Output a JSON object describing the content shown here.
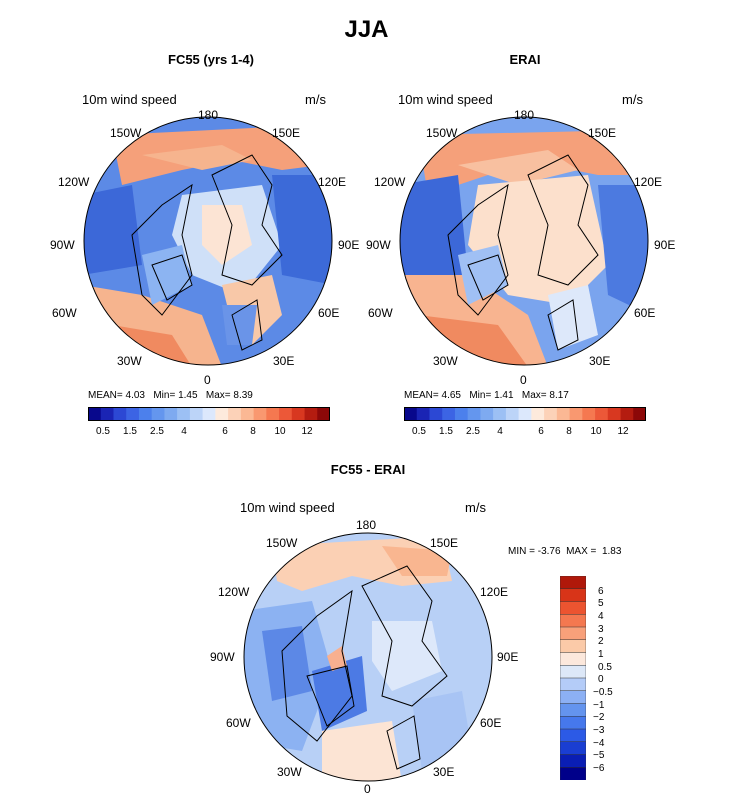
{
  "title": "JJA",
  "panels": [
    {
      "id": "fc55",
      "title": "FC55 (yrs 1-4)",
      "variable": "10m wind speed",
      "units": "m/s",
      "stats": {
        "mean_label": "MEAN=",
        "mean": "4.03",
        "min_label": "Min=",
        "min": "1.45",
        "max_label": "Max=",
        "max": "8.39"
      }
    },
    {
      "id": "erai",
      "title": "ERAI",
      "variable": "10m wind speed",
      "units": "m/s",
      "stats": {
        "mean_label": "MEAN=",
        "mean": "4.65",
        "min_label": "Min=",
        "min": "1.41",
        "max_label": "Max=",
        "max": "8.17"
      }
    },
    {
      "id": "diff",
      "title": "FC55 - ERAI",
      "variable": "10m wind speed",
      "units": "m/s",
      "stats": {
        "min_label": "MIN =",
        "min": "-3.76",
        "max_label": "MAX =",
        "max": "1.83"
      }
    }
  ],
  "longitude_labels": [
    "180",
    "150E",
    "120E",
    "90E",
    "60E",
    "30E",
    "0",
    "30W",
    "60W",
    "90W",
    "120W",
    "150W"
  ],
  "colorbar_abs": {
    "colors": [
      "#08088c",
      "#1a24b4",
      "#2c48d4",
      "#3c64e4",
      "#4c80ec",
      "#6496ee",
      "#7eaaf0",
      "#9cc0f4",
      "#bcd4f8",
      "#dce8fc",
      "#fdeadc",
      "#fcd2b8",
      "#fbb894",
      "#f99870",
      "#f57850",
      "#ec5838",
      "#d83820",
      "#b41c10",
      "#8c0808"
    ],
    "tick_labels": [
      "0.5",
      "1.5",
      "2.5",
      "4",
      "6",
      "8",
      "10",
      "12"
    ]
  },
  "colorbar_diff": {
    "colors": [
      "#00008a",
      "#0a1eb4",
      "#1a3ed2",
      "#2c5ae6",
      "#4678ec",
      "#6494ee",
      "#8cb0f4",
      "#b4ccf8",
      "#dde8f8",
      "#fce8dc",
      "#fbcaa8",
      "#f8a07a",
      "#f47850",
      "#ec5430",
      "#d83418",
      "#b0180a"
    ],
    "tick_labels": [
      "6",
      "5",
      "4",
      "3",
      "2",
      "1",
      "0.5",
      "0",
      "−0.5",
      "−1",
      "−2",
      "−3",
      "−4",
      "−5",
      "−6"
    ]
  }
}
